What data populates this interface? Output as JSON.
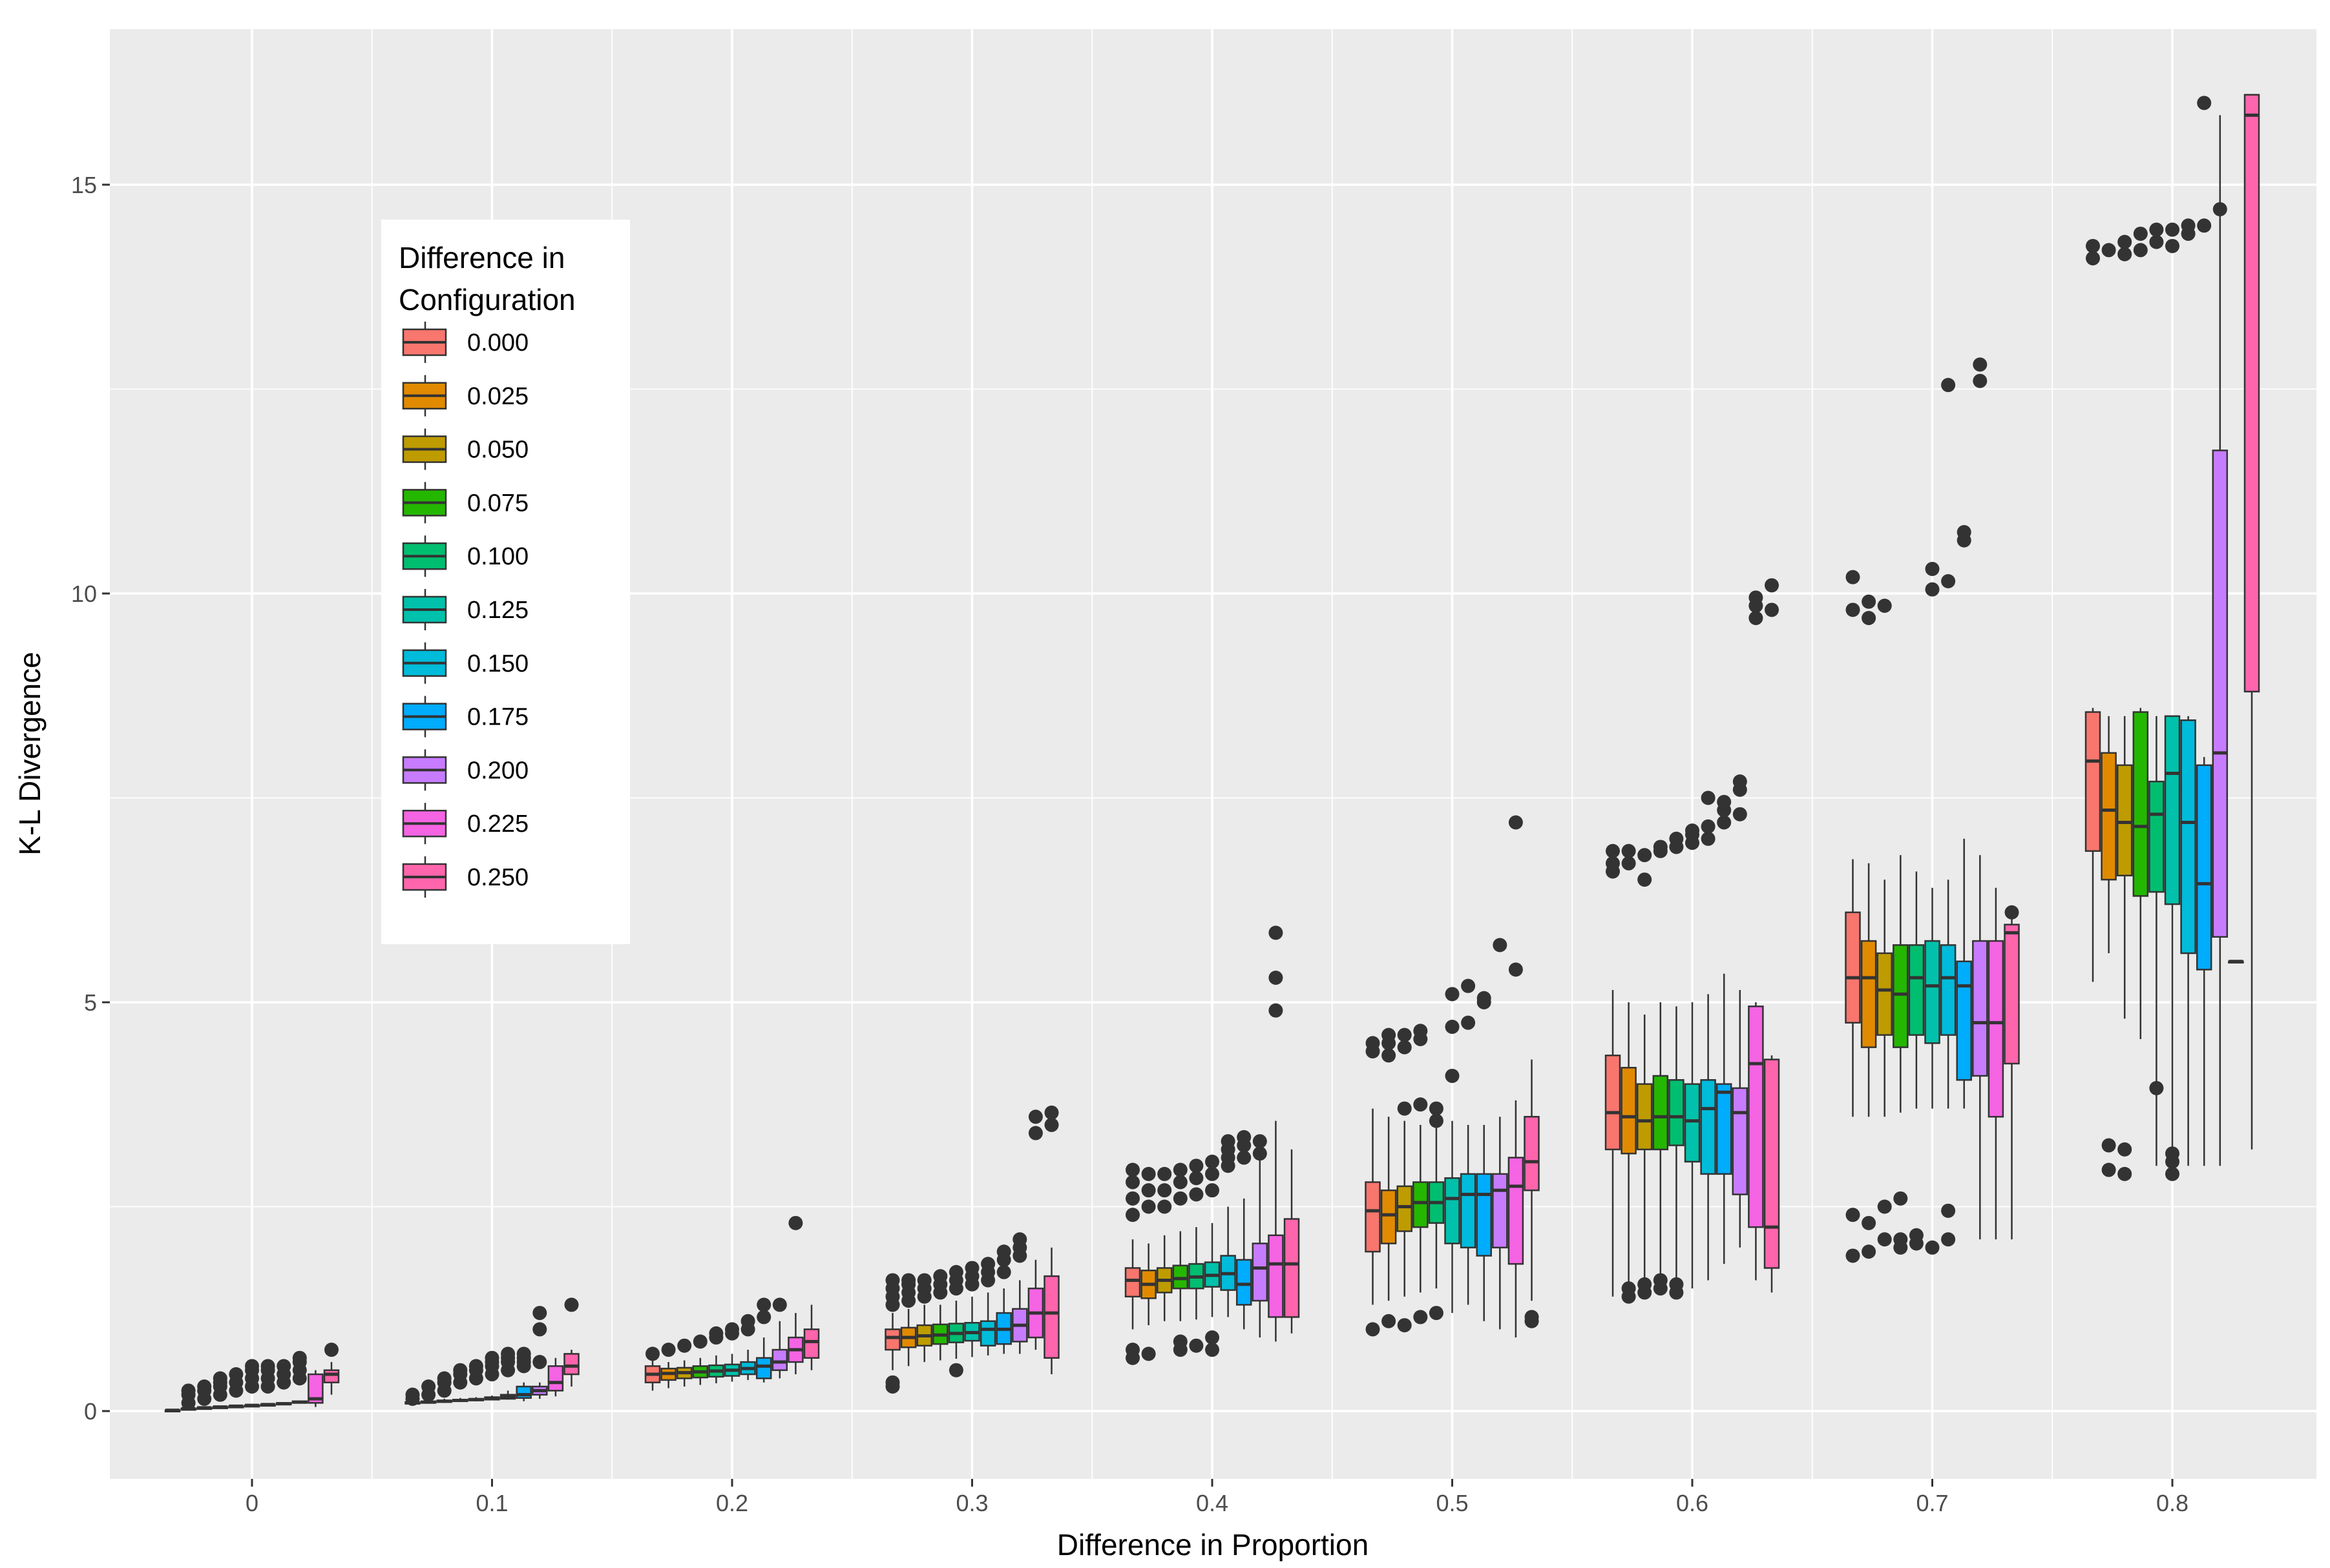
{
  "chart_data": {
    "type": "boxplot",
    "xlabel": "Difference in Proportion",
    "ylabel": "K-L Divergence",
    "x_ticks": [
      "0",
      "0.1",
      "0.2",
      "0.3",
      "0.4",
      "0.5",
      "0.6",
      "0.7",
      "0.8"
    ],
    "y_ticks": [
      0,
      5,
      10,
      15
    ],
    "ylim": [
      -0.8,
      16.9
    ],
    "legend": {
      "title_lines": [
        "Difference in",
        "Configuration"
      ],
      "position": "upper-left inside",
      "entries": [
        "0.000",
        "0.025",
        "0.050",
        "0.075",
        "0.100",
        "0.125",
        "0.150",
        "0.175",
        "0.200",
        "0.225",
        "0.250"
      ]
    },
    "series_colors": [
      "#F8766D",
      "#E18A00",
      "#BE9C00",
      "#24B700",
      "#00BE70",
      "#00C1AB",
      "#00BBDA",
      "#00ACFC",
      "#C77CFF",
      "#F564E3",
      "#FF65AC"
    ],
    "groups": [
      {
        "x": "0",
        "boxes": [
          [
            0.01,
            0.01,
            0.01,
            0.01,
            0.01
          ],
          [
            0.02,
            0.02,
            0.03,
            0.03,
            0.04
          ],
          [
            0.03,
            0.03,
            0.04,
            0.04,
            0.05
          ],
          [
            0.04,
            0.04,
            0.05,
            0.05,
            0.06
          ],
          [
            0.05,
            0.05,
            0.06,
            0.06,
            0.07
          ],
          [
            0.06,
            0.06,
            0.07,
            0.07,
            0.08
          ],
          [
            0.07,
            0.07,
            0.08,
            0.08,
            0.09
          ],
          [
            0.08,
            0.08,
            0.09,
            0.1,
            0.11
          ],
          [
            0.09,
            0.1,
            0.11,
            0.12,
            0.13
          ],
          [
            0.05,
            0.1,
            0.15,
            0.45,
            0.5
          ],
          [
            0.2,
            0.35,
            0.45,
            0.5,
            0.6
          ]
        ],
        "outliers": [
          [],
          [
            0.1,
            0.2,
            0.25
          ],
          [
            0.15,
            0.25,
            0.3
          ],
          [
            0.2,
            0.3,
            0.35,
            0.4
          ],
          [
            0.25,
            0.35,
            0.45
          ],
          [
            0.3,
            0.4,
            0.5,
            0.55
          ],
          [
            0.3,
            0.4,
            0.5,
            0.55
          ],
          [
            0.35,
            0.45,
            0.55
          ],
          [
            0.4,
            0.5,
            0.6,
            0.65
          ],
          [],
          [
            0.75
          ]
        ]
      },
      {
        "x": "0.1",
        "boxes": [
          [
            0.08,
            0.09,
            0.1,
            0.11,
            0.12
          ],
          [
            0.09,
            0.1,
            0.11,
            0.12,
            0.13
          ],
          [
            0.1,
            0.11,
            0.12,
            0.13,
            0.15
          ],
          [
            0.11,
            0.12,
            0.13,
            0.14,
            0.16
          ],
          [
            0.12,
            0.13,
            0.14,
            0.15,
            0.17
          ],
          [
            0.13,
            0.14,
            0.15,
            0.17,
            0.19
          ],
          [
            0.14,
            0.15,
            0.17,
            0.2,
            0.25
          ],
          [
            0.12,
            0.16,
            0.2,
            0.3,
            0.35
          ],
          [
            0.15,
            0.2,
            0.25,
            0.3,
            0.35
          ],
          [
            0.18,
            0.25,
            0.35,
            0.55,
            0.65
          ],
          [
            0.3,
            0.45,
            0.55,
            0.7,
            0.75
          ]
        ],
        "outliers": [
          [
            0.15,
            0.2
          ],
          [
            0.2,
            0.3
          ],
          [
            0.25,
            0.35,
            0.4
          ],
          [
            0.35,
            0.45,
            0.5
          ],
          [
            0.4,
            0.5,
            0.55
          ],
          [
            0.45,
            0.55,
            0.6,
            0.65
          ],
          [
            0.5,
            0.6,
            0.65,
            0.7
          ],
          [
            0.55,
            0.6,
            0.65,
            0.7
          ],
          [
            0.6,
            1.0,
            1.2
          ],
          [],
          [
            1.3
          ]
        ]
      },
      {
        "x": "0.2",
        "boxes": [
          [
            0.25,
            0.35,
            0.45,
            0.55,
            0.65
          ],
          [
            0.28,
            0.38,
            0.46,
            0.52,
            0.6
          ],
          [
            0.3,
            0.4,
            0.47,
            0.53,
            0.62
          ],
          [
            0.32,
            0.41,
            0.48,
            0.55,
            0.65
          ],
          [
            0.34,
            0.42,
            0.49,
            0.56,
            0.68
          ],
          [
            0.36,
            0.43,
            0.5,
            0.57,
            0.7
          ],
          [
            0.38,
            0.45,
            0.52,
            0.6,
            0.75
          ],
          [
            0.35,
            0.4,
            0.55,
            0.65,
            0.9
          ],
          [
            0.4,
            0.5,
            0.6,
            0.75,
            1.1
          ],
          [
            0.45,
            0.6,
            0.75,
            0.9,
            1.2
          ],
          [
            0.5,
            0.65,
            0.85,
            1.0,
            1.3
          ]
        ],
        "outliers": [
          [
            0.7
          ],
          [
            0.75
          ],
          [
            0.8
          ],
          [
            0.85
          ],
          [
            0.9,
            0.95
          ],
          [
            0.95,
            1.0
          ],
          [
            1.0,
            1.1
          ],
          [
            1.15,
            1.3
          ],
          [
            1.3
          ],
          [
            2.3
          ],
          []
        ]
      },
      {
        "x": "0.3",
        "boxes": [
          [
            0.5,
            0.75,
            0.9,
            1.0,
            1.2
          ],
          [
            0.55,
            0.78,
            0.9,
            1.02,
            1.25
          ],
          [
            0.6,
            0.8,
            0.92,
            1.05,
            1.3
          ],
          [
            0.62,
            0.82,
            0.93,
            1.06,
            1.3
          ],
          [
            0.64,
            0.84,
            0.95,
            1.07,
            1.35
          ],
          [
            0.66,
            0.86,
            0.96,
            1.08,
            1.4
          ],
          [
            0.68,
            0.8,
            1.0,
            1.1,
            1.45
          ],
          [
            0.7,
            0.82,
            1.0,
            1.2,
            1.5
          ],
          [
            0.7,
            0.85,
            1.05,
            1.25,
            1.6
          ],
          [
            0.75,
            0.9,
            1.2,
            1.5,
            1.85
          ],
          [
            0.45,
            0.65,
            1.2,
            1.65,
            2.0
          ]
        ],
        "outliers": [
          [
            0.3,
            0.35,
            1.3,
            1.4,
            1.5,
            1.6
          ],
          [
            1.35,
            1.45,
            1.55,
            1.6
          ],
          [
            1.4,
            1.5,
            1.6
          ],
          [
            1.45,
            1.55,
            1.65
          ],
          [
            0.5,
            1.5,
            1.6,
            1.7
          ],
          [
            1.55,
            1.65,
            1.75
          ],
          [
            1.6,
            1.7,
            1.8
          ],
          [
            1.7,
            1.85,
            1.95
          ],
          [
            1.9,
            2.0,
            2.1
          ],
          [
            3.4,
            3.6
          ],
          [
            3.5,
            3.65
          ]
        ]
      },
      {
        "x": "0.4",
        "boxes": [
          [
            1.0,
            1.4,
            1.6,
            1.75,
            2.1
          ],
          [
            1.05,
            1.38,
            1.55,
            1.72,
            2.05
          ],
          [
            1.1,
            1.45,
            1.6,
            1.75,
            2.15
          ],
          [
            1.1,
            1.5,
            1.62,
            1.78,
            2.2
          ],
          [
            1.12,
            1.5,
            1.64,
            1.8,
            2.25
          ],
          [
            1.15,
            1.52,
            1.66,
            1.82,
            2.3
          ],
          [
            1.15,
            1.48,
            1.68,
            1.9,
            2.5
          ],
          [
            1.0,
            1.3,
            1.55,
            1.85,
            2.6
          ],
          [
            0.9,
            1.35,
            1.75,
            2.05,
            3.2
          ],
          [
            0.85,
            1.15,
            1.8,
            2.15,
            3.55
          ],
          [
            0.95,
            1.15,
            1.8,
            2.35,
            3.2
          ]
        ],
        "outliers": [
          [
            0.65,
            0.75,
            2.4,
            2.6,
            2.8,
            2.95
          ],
          [
            0.7,
            2.5,
            2.7,
            2.9
          ],
          [
            2.5,
            2.7,
            2.9
          ],
          [
            0.75,
            0.85,
            2.6,
            2.8,
            2.95
          ],
          [
            0.8,
            2.65,
            2.85,
            3.0
          ],
          [
            0.75,
            0.9,
            2.7,
            2.9,
            3.05
          ],
          [
            3.0,
            3.1,
            3.2,
            3.3
          ],
          [
            3.1,
            3.25,
            3.35
          ],
          [
            3.15,
            3.3
          ],
          [
            4.9,
            5.3,
            5.85
          ],
          []
        ]
      },
      {
        "x": "0.5",
        "boxes": [
          [
            1.3,
            1.95,
            2.45,
            2.8,
            3.7
          ],
          [
            1.35,
            2.05,
            2.4,
            2.7,
            3.6
          ],
          [
            1.4,
            2.2,
            2.5,
            2.75,
            3.55
          ],
          [
            1.45,
            2.25,
            2.55,
            2.8,
            3.5
          ],
          [
            1.5,
            2.3,
            2.55,
            2.8,
            3.5
          ],
          [
            1.2,
            2.05,
            2.6,
            2.85,
            3.55
          ],
          [
            1.3,
            2.0,
            2.65,
            2.9,
            3.5
          ],
          [
            1.1,
            1.9,
            2.65,
            2.9,
            3.5
          ],
          [
            1.0,
            2.0,
            2.7,
            2.9,
            3.6
          ],
          [
            0.9,
            1.8,
            2.75,
            3.1,
            3.8
          ],
          [
            1.35,
            2.7,
            3.05,
            3.6,
            4.3
          ]
        ],
        "outliers": [
          [
            1.0,
            4.4,
            4.5
          ],
          [
            1.1,
            4.35,
            4.5,
            4.6
          ],
          [
            1.05,
            3.7,
            4.45,
            4.6
          ],
          [
            1.15,
            3.75,
            4.55,
            4.65
          ],
          [
            1.2,
            3.55,
            3.7
          ],
          [
            4.1,
            4.7,
            5.1
          ],
          [
            4.75,
            5.2
          ],
          [
            5.0,
            5.05
          ],
          [
            5.7
          ],
          [
            5.4,
            7.2
          ],
          [
            1.1,
            1.15
          ]
        ]
      },
      {
        "x": "0.6",
        "boxes": [
          [
            1.4,
            3.2,
            3.65,
            4.35,
            5.15
          ],
          [
            1.45,
            3.15,
            3.6,
            4.2,
            5.0
          ],
          [
            1.5,
            3.2,
            3.55,
            4.0,
            4.85
          ],
          [
            1.5,
            3.2,
            3.6,
            4.1,
            5.0
          ],
          [
            1.55,
            3.25,
            3.6,
            4.05,
            4.95
          ],
          [
            1.5,
            3.05,
            3.55,
            4.0,
            5.0
          ],
          [
            1.6,
            2.9,
            3.7,
            4.05,
            5.1
          ],
          [
            1.8,
            2.9,
            3.9,
            4.0,
            5.35
          ],
          [
            2.0,
            2.65,
            3.65,
            3.95,
            5.15
          ],
          [
            1.6,
            2.25,
            4.25,
            4.95,
            5.0
          ],
          [
            1.45,
            1.75,
            2.25,
            4.3,
            4.35
          ]
        ],
        "outliers": [
          [
            6.6,
            6.7,
            6.85
          ],
          [
            1.4,
            1.5,
            6.7,
            6.85
          ],
          [
            1.45,
            1.55,
            6.5,
            6.8
          ],
          [
            1.5,
            1.6,
            6.85,
            6.9
          ],
          [
            1.45,
            1.55,
            6.9,
            7.0
          ],
          [
            6.95,
            7.05,
            7.1
          ],
          [
            7.0,
            7.15,
            7.5
          ],
          [
            7.2,
            7.35,
            7.45
          ],
          [
            7.3,
            7.6,
            7.7
          ],
          [
            9.7,
            9.85,
            9.95
          ],
          [
            9.8,
            10.1
          ]
        ]
      },
      {
        "x": "0.7",
        "boxes": [
          [
            3.6,
            4.75,
            5.3,
            6.1,
            6.75
          ],
          [
            3.6,
            4.45,
            5.3,
            5.75,
            6.7
          ],
          [
            3.6,
            4.6,
            5.15,
            5.6,
            6.5
          ],
          [
            3.65,
            4.45,
            5.1,
            5.7,
            6.8
          ],
          [
            3.7,
            4.6,
            5.3,
            5.7,
            6.6
          ],
          [
            3.7,
            4.5,
            5.2,
            5.75,
            6.4
          ],
          [
            3.7,
            4.6,
            5.3,
            5.7,
            6.5
          ],
          [
            3.7,
            4.05,
            5.2,
            5.5,
            7.0
          ],
          [
            2.1,
            4.1,
            4.75,
            5.75,
            6.8
          ],
          [
            2.1,
            3.6,
            4.75,
            5.75,
            6.4
          ],
          [
            2.1,
            4.25,
            5.85,
            5.95,
            6.1
          ]
        ],
        "outliers": [
          [
            1.9,
            2.4,
            9.8,
            10.2
          ],
          [
            1.95,
            2.3,
            9.7,
            9.9
          ],
          [
            2.1,
            2.5,
            9.85
          ],
          [
            2.0,
            2.1,
            2.6
          ],
          [
            2.05,
            2.15
          ],
          [
            2.0,
            10.05,
            10.3
          ],
          [
            2.1,
            2.45,
            10.15,
            12.55
          ],
          [
            10.65,
            10.75
          ],
          [
            12.6,
            12.8
          ],
          [],
          [
            6.1
          ]
        ]
      },
      {
        "x": "0.8",
        "boxes": [
          [
            5.25,
            6.85,
            7.95,
            8.55,
            8.6
          ],
          [
            5.6,
            6.5,
            7.35,
            8.05,
            8.5
          ],
          [
            4.8,
            6.55,
            7.2,
            7.9,
            8.5
          ],
          [
            4.55,
            6.3,
            7.15,
            8.55,
            8.6
          ],
          [
            3.0,
            6.35,
            7.3,
            7.7,
            8.5
          ],
          [
            3.15,
            6.2,
            7.8,
            8.5,
            8.5
          ],
          [
            3.0,
            5.6,
            7.2,
            8.45,
            8.5
          ],
          [
            3.0,
            5.4,
            6.45,
            7.9,
            8.0
          ],
          [
            3.0,
            5.8,
            8.05,
            11.75,
            15.85
          ],
          [
            5.5,
            5.5,
            5.5,
            5.5,
            5.5
          ],
          [
            3.2,
            8.8,
            15.85,
            16.1,
            16.1
          ]
        ],
        "outliers": [
          [
            14.1,
            14.25
          ],
          [
            2.95,
            3.25,
            14.2
          ],
          [
            2.9,
            3.2,
            14.15,
            14.3
          ],
          [
            14.2,
            14.4
          ],
          [
            3.95,
            14.3,
            14.45
          ],
          [
            2.9,
            3.05,
            3.15,
            14.25,
            14.45
          ],
          [
            14.4,
            14.5
          ],
          [
            14.5,
            16.0
          ],
          [
            14.7
          ],
          [],
          []
        ]
      }
    ]
  }
}
